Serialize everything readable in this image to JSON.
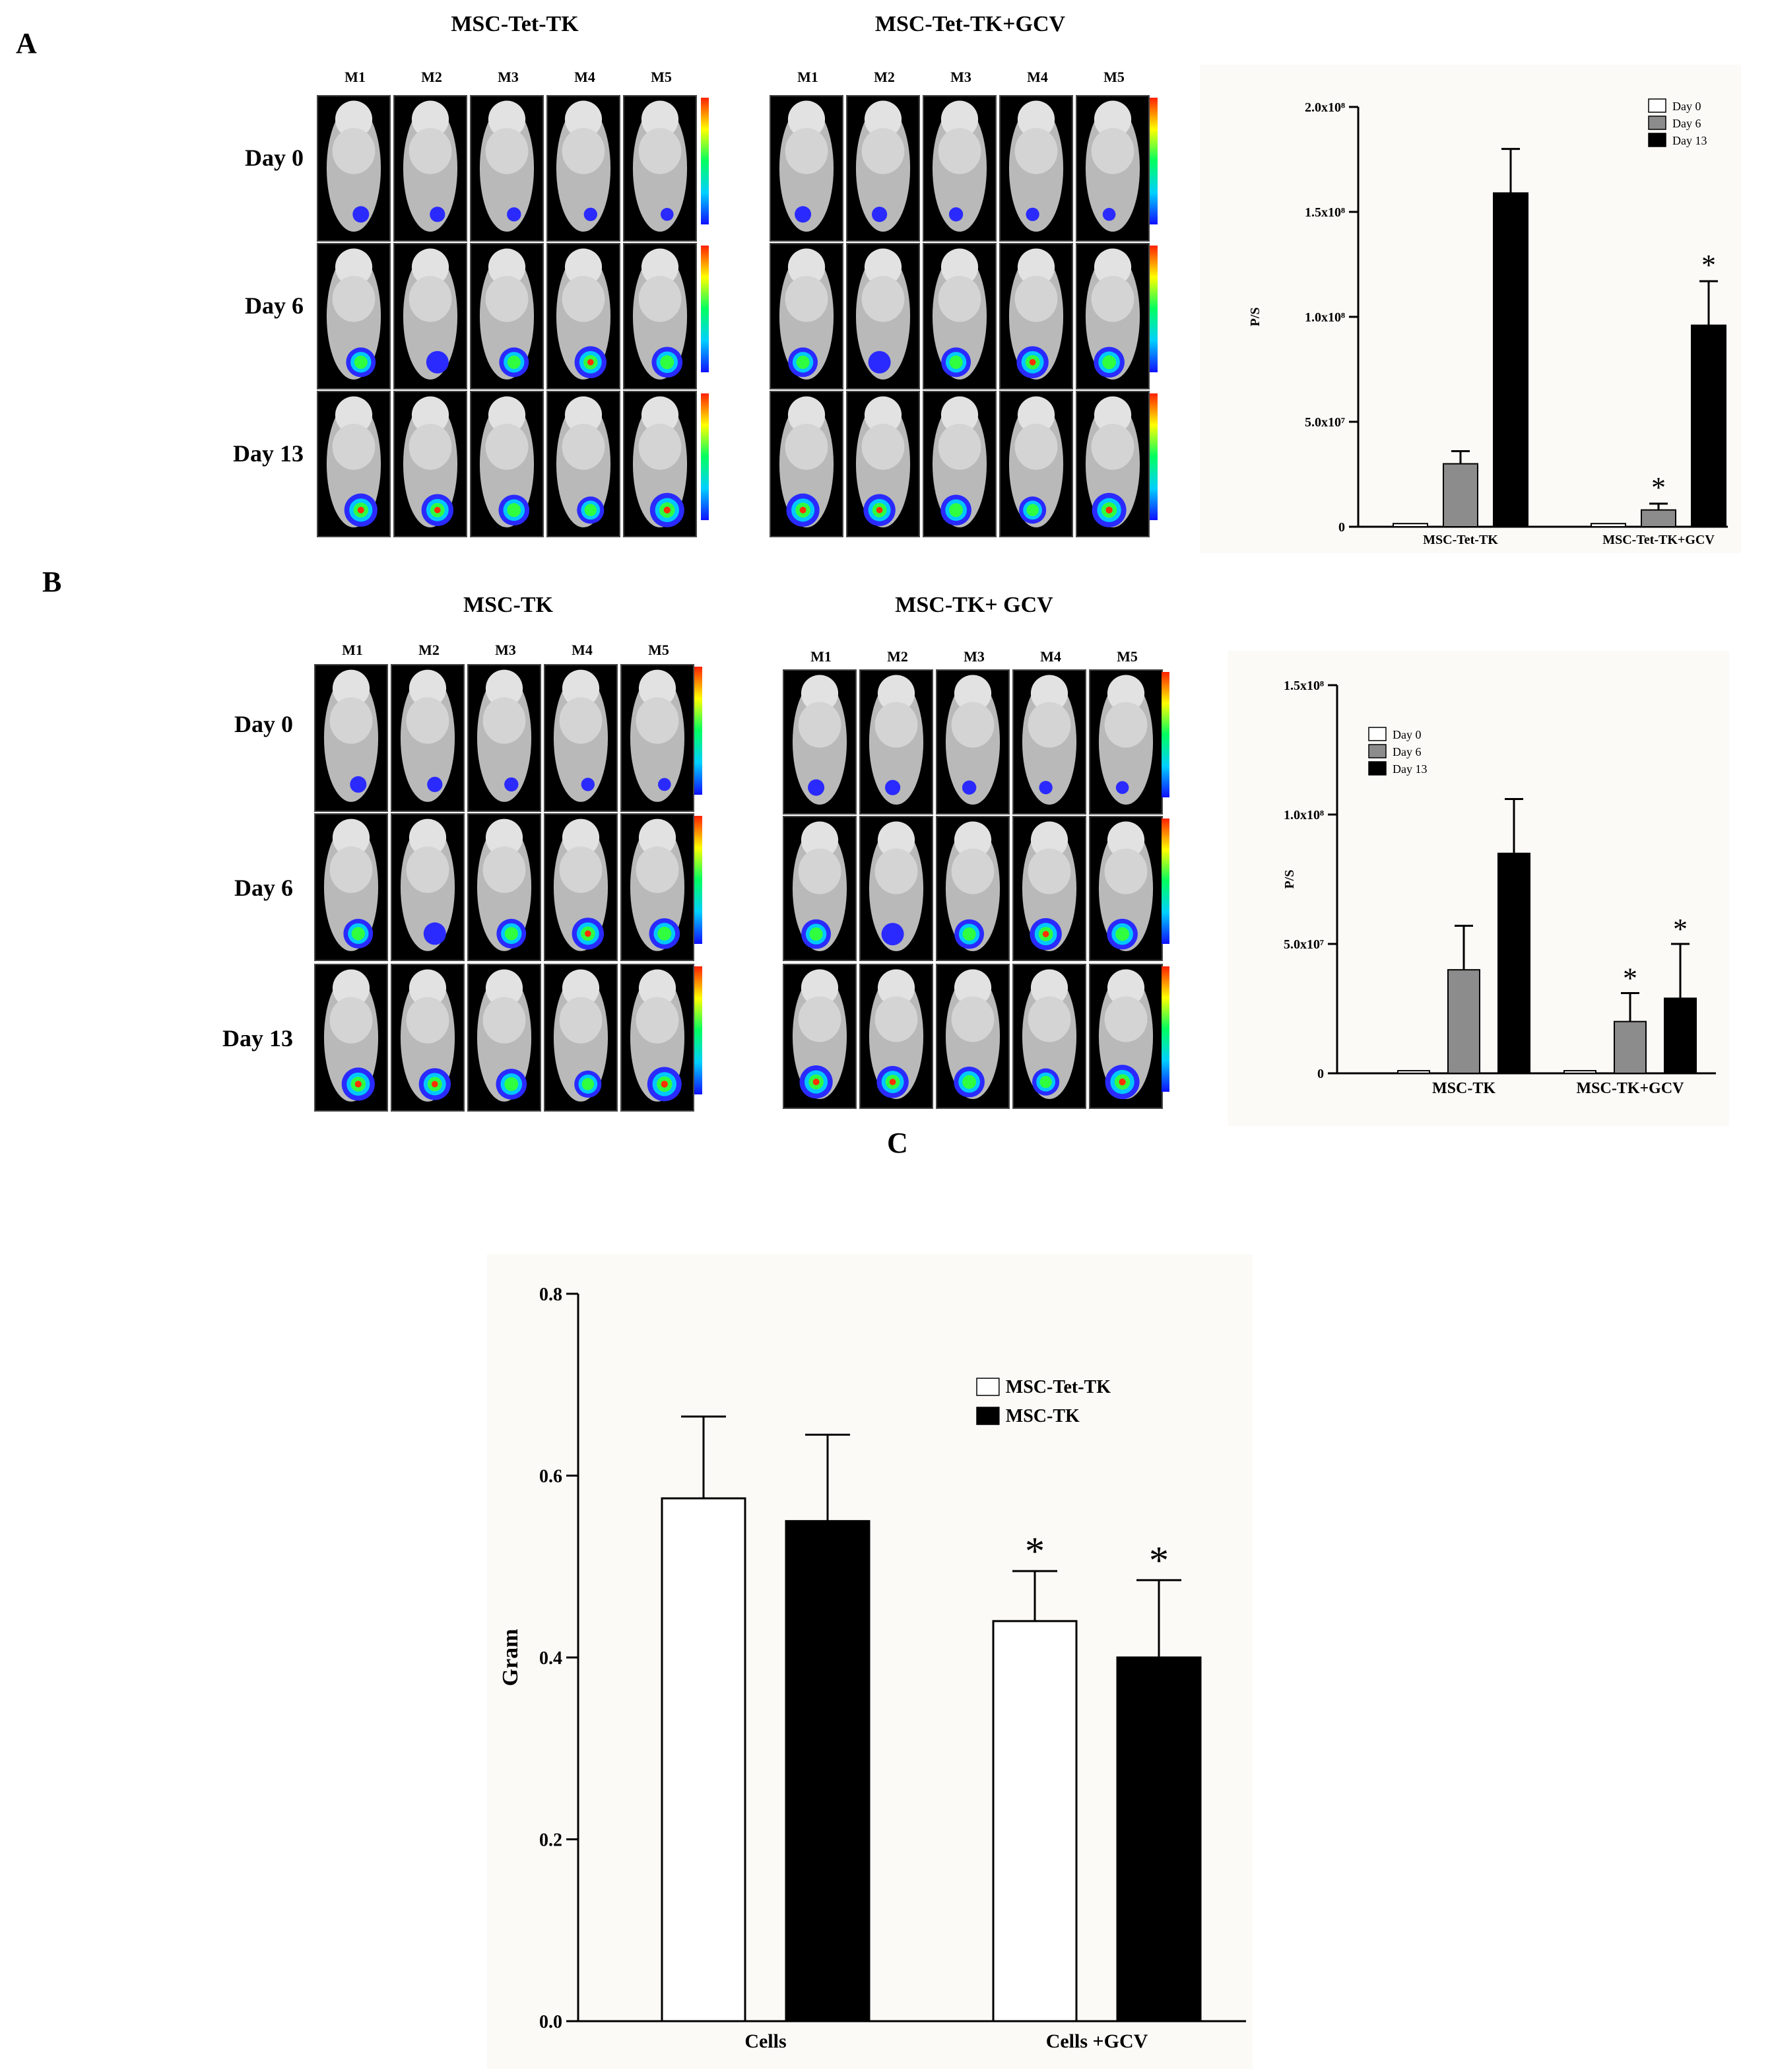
{
  "panels": {
    "a": {
      "letter": "A",
      "groups": [
        {
          "title": "MSC-Tet-TK"
        },
        {
          "title": "MSC-Tet-TK+GCV"
        }
      ]
    },
    "b": {
      "letter": "B",
      "groups": [
        {
          "title": "MSC-TK"
        },
        {
          "title": "MSC-TK+ GCV"
        }
      ]
    },
    "c": {
      "letter": "C"
    }
  },
  "mouse_labels": [
    "M1",
    "M2",
    "M3",
    "M4",
    "M5"
  ],
  "day_labels": [
    "Day 0",
    "Day 6",
    "Day 13"
  ],
  "colors": {
    "day0_fill": "#ffffff",
    "day6_fill": "#8c8c8c",
    "day13_fill": "#000000",
    "bg_chart": "#fbfaf7",
    "bio_low": "#2020ff",
    "bio_high": "#ff2000"
  },
  "chart_data": [
    {
      "id": "chart-a",
      "type": "bar",
      "title": "",
      "xlabel": "",
      "ylabel": "P/S",
      "categories": [
        "MSC-Tet-TK",
        "MSC-Tet-TK+GCV"
      ],
      "series": [
        {
          "name": "Day 0",
          "values": [
            1500000,
            1500000
          ],
          "errors": [
            0,
            0
          ],
          "sig": [
            false,
            false
          ]
        },
        {
          "name": "Day 6",
          "values": [
            30000000,
            8000000
          ],
          "errors": [
            6000000,
            3000000
          ],
          "sig": [
            false,
            true
          ]
        },
        {
          "name": "Day 13",
          "values": [
            159000000,
            96000000
          ],
          "errors": [
            21000000,
            21000000
          ],
          "sig": [
            false,
            true
          ]
        }
      ],
      "ylim": [
        0,
        200000000
      ],
      "yticks": [
        0,
        50000000,
        100000000,
        150000000,
        200000000
      ],
      "ytick_labels": [
        "0",
        "5.0x10⁷",
        "1.0x10⁸",
        "1.5x10⁸",
        "2.0x10⁸"
      ],
      "legend": "top-right",
      "sig_mark": "*"
    },
    {
      "id": "chart-b",
      "type": "bar",
      "title": "",
      "xlabel": "",
      "ylabel": "P/S",
      "categories": [
        "MSC-TK",
        "MSC-TK+GCV"
      ],
      "series": [
        {
          "name": "Day 0",
          "values": [
            1000000,
            1000000
          ],
          "errors": [
            0,
            0
          ],
          "sig": [
            false,
            false
          ]
        },
        {
          "name": "Day 6",
          "values": [
            40000000,
            20000000
          ],
          "errors": [
            17000000,
            11000000
          ],
          "sig": [
            false,
            true
          ]
        },
        {
          "name": "Day 13",
          "values": [
            85000000,
            29000000
          ],
          "errors": [
            21000000,
            21000000
          ],
          "sig": [
            false,
            true
          ]
        }
      ],
      "ylim": [
        0,
        150000000
      ],
      "yticks": [
        0,
        50000000,
        100000000,
        150000000
      ],
      "ytick_labels": [
        "0",
        "5.0x10⁷",
        "1.0x10⁸",
        "1.5x10⁸"
      ],
      "legend": "top-left",
      "sig_mark": "*"
    },
    {
      "id": "chart-c",
      "type": "bar",
      "title": "",
      "xlabel": "",
      "ylabel": "Gram",
      "categories": [
        "Cells",
        "Cells +GCV"
      ],
      "series": [
        {
          "name": "MSC-Tet-TK",
          "values": [
            0.575,
            0.44
          ],
          "errors": [
            0.09,
            0.055
          ],
          "sig": [
            false,
            true
          ]
        },
        {
          "name": "MSC-TK",
          "values": [
            0.55,
            0.4
          ],
          "errors": [
            0.095,
            0.085
          ],
          "sig": [
            false,
            true
          ]
        }
      ],
      "ylim": [
        0,
        0.8
      ],
      "yticks": [
        0,
        0.2,
        0.4,
        0.6,
        0.8
      ],
      "ytick_labels": [
        "0.0",
        "0.2",
        "0.4",
        "0.6",
        "0.8"
      ],
      "legend": "top-right",
      "sig_mark": "*"
    }
  ]
}
